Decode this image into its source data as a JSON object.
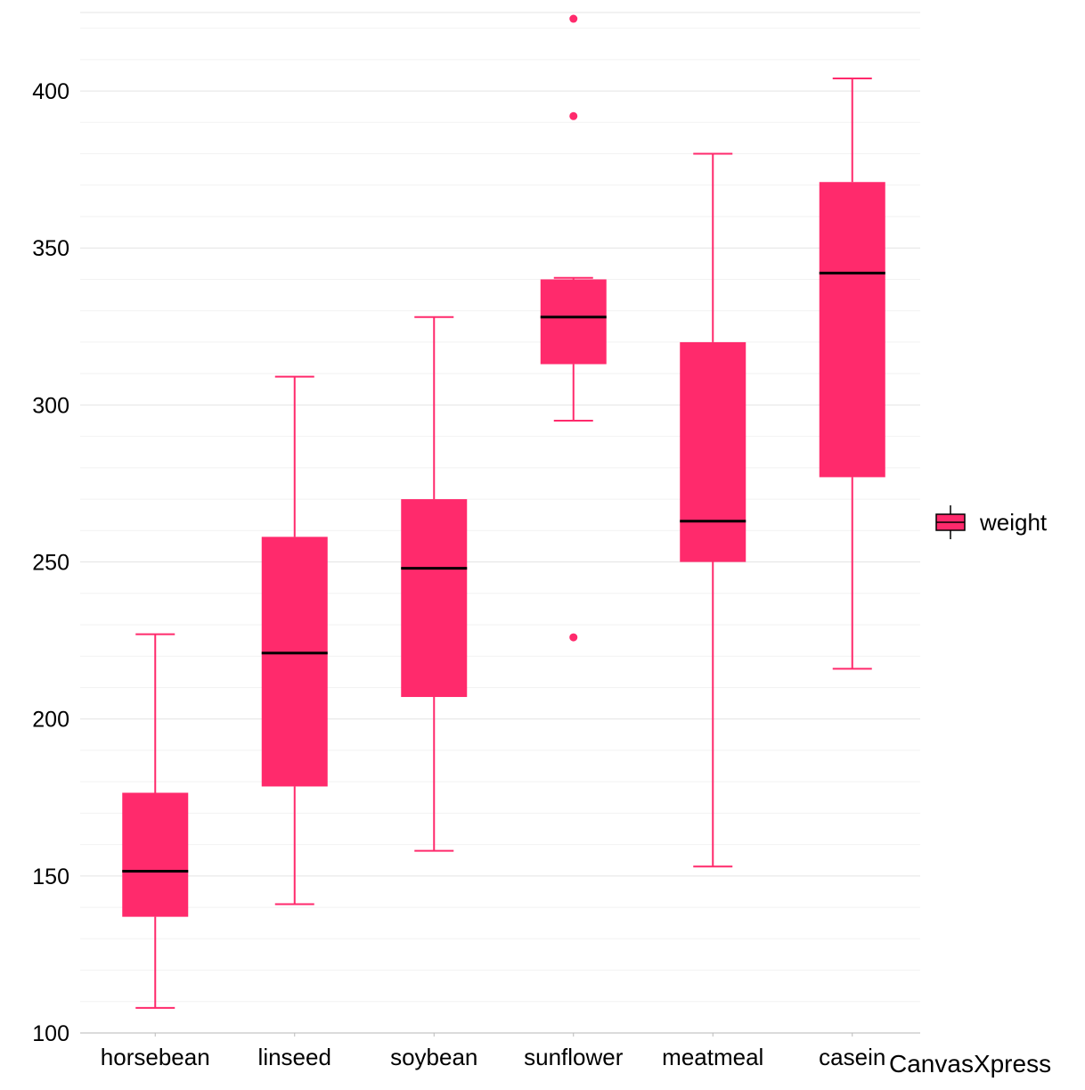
{
  "chart_data": {
    "type": "boxplot",
    "title": "",
    "xlabel": "",
    "ylabel": "",
    "ylim": [
      100,
      425
    ],
    "yticks": [
      100,
      150,
      200,
      250,
      300,
      350,
      400
    ],
    "grid": true,
    "legend_position": "right",
    "categories": [
      "horsebean",
      "linseed",
      "soybean",
      "sunflower",
      "meatmeal",
      "casein"
    ],
    "series": [
      {
        "name": "weight",
        "color": "#FF2A6C",
        "boxes": [
          {
            "category": "horsebean",
            "min": 108,
            "q1": 137,
            "median": 151.5,
            "q3": 176.5,
            "max": 227,
            "outliers": []
          },
          {
            "category": "linseed",
            "min": 141,
            "q1": 178.5,
            "median": 221,
            "q3": 258,
            "max": 309,
            "outliers": []
          },
          {
            "category": "soybean",
            "min": 158,
            "q1": 207,
            "median": 248,
            "q3": 270,
            "max": 328,
            "outliers": []
          },
          {
            "category": "sunflower",
            "min": 295,
            "q1": 313,
            "median": 328,
            "q3": 340,
            "max": 340.5,
            "outliers": [
              226,
              392,
              423
            ]
          },
          {
            "category": "meatmeal",
            "min": 153,
            "q1": 250,
            "median": 263,
            "q3": 320,
            "max": 380,
            "outliers": []
          },
          {
            "category": "casein",
            "min": 216,
            "q1": 277,
            "median": 342,
            "q3": 371,
            "max": 404,
            "outliers": []
          }
        ]
      }
    ],
    "median_color": "#000000",
    "watermark": "CanvasXpress"
  }
}
